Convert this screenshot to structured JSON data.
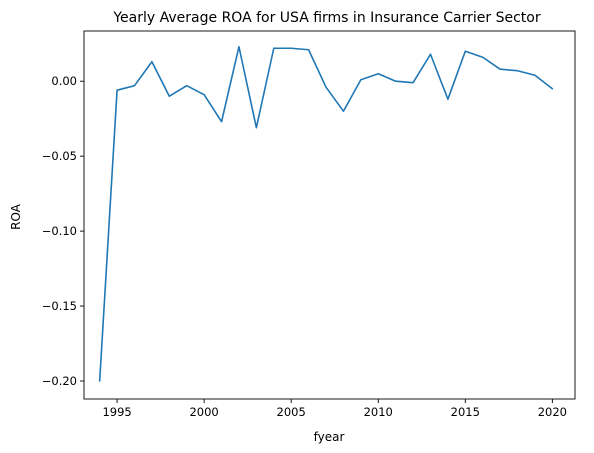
{
  "chart_data": {
    "type": "line",
    "title": "Yearly Average ROA for USA firms in Insurance Carrier Sector",
    "xlabel": "fyear",
    "ylabel": "ROA",
    "xlim": [
      1993.1,
      2021.3
    ],
    "ylim": [
      -0.212,
      0.0335
    ],
    "xticks": [
      1995,
      2000,
      2005,
      2010,
      2015,
      2020
    ],
    "xtick_labels": [
      "1995",
      "2000",
      "2005",
      "2010",
      "2015",
      "2020"
    ],
    "yticks": [
      0.0,
      -0.05,
      -0.1,
      -0.15,
      -0.2
    ],
    "ytick_labels": [
      "0.00",
      "−0.05",
      "−0.10",
      "−0.15",
      "−0.20"
    ],
    "grid": false,
    "series": [
      {
        "color": "#1f77b4",
        "x": [
          1994,
          1995,
          1996,
          1997,
          1998,
          1999,
          2000,
          2001,
          2002,
          2003,
          2004,
          2005,
          2006,
          2007,
          2008,
          2009,
          2010,
          2011,
          2012,
          2013,
          2014,
          2015,
          2016,
          2017,
          2018,
          2019,
          2020
        ],
        "y": [
          -0.2,
          -0.006,
          -0.003,
          0.013,
          -0.01,
          -0.003,
          -0.009,
          -0.027,
          0.023,
          -0.031,
          0.022,
          0.022,
          0.021,
          -0.004,
          -0.02,
          0.001,
          0.005,
          0.0,
          -0.001,
          0.018,
          -0.012,
          0.02,
          0.016,
          0.008,
          0.007,
          0.004,
          -0.005
        ]
      }
    ]
  }
}
